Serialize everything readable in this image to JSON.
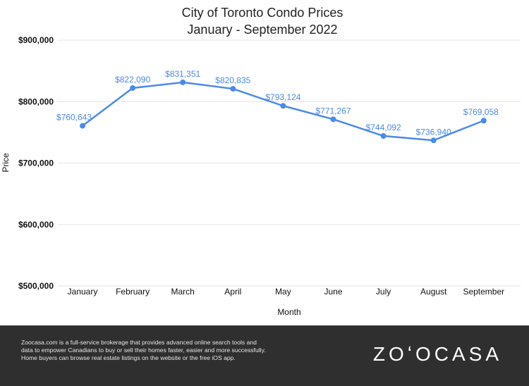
{
  "chart_data": {
    "type": "line",
    "title": [
      "City of Toronto Condo Prices",
      "January - September 2022"
    ],
    "xlabel": "Month",
    "ylabel": "Price",
    "categories": [
      "January",
      "February",
      "March",
      "April",
      "May",
      "June",
      "July",
      "August",
      "September"
    ],
    "series": [
      {
        "values": [
          760643,
          822090,
          831351,
          820835,
          793124,
          771267,
          744092,
          736940,
          769058
        ],
        "labels": [
          "$760,643",
          "$822,090",
          "$831,351",
          "$820,835",
          "$793,124",
          "$771,267",
          "$744,092",
          "$736,940",
          "$769,058"
        ],
        "color": "#4a8ae8"
      }
    ],
    "ylim": [
      500000,
      900000
    ],
    "yticks": [
      500000,
      600000,
      700000,
      800000,
      900000
    ],
    "ytick_labels": [
      "$500,000",
      "$600,000",
      "$700,000",
      "$800,000",
      "$900,000"
    ],
    "grid": true,
    "gridline_color": "#e3e3e3"
  },
  "footer": {
    "lines": [
      "Zoocasa.com is a full-service brokerage that provides advanced online search tools and",
      "data to empower Canadians to buy or sell their homes faster, easier and more successfully.",
      "Home buyers can browse real estate listings on the website or the free iOS app."
    ],
    "logo": "ZOʻOCASA",
    "background": "#2f2f2f"
  }
}
